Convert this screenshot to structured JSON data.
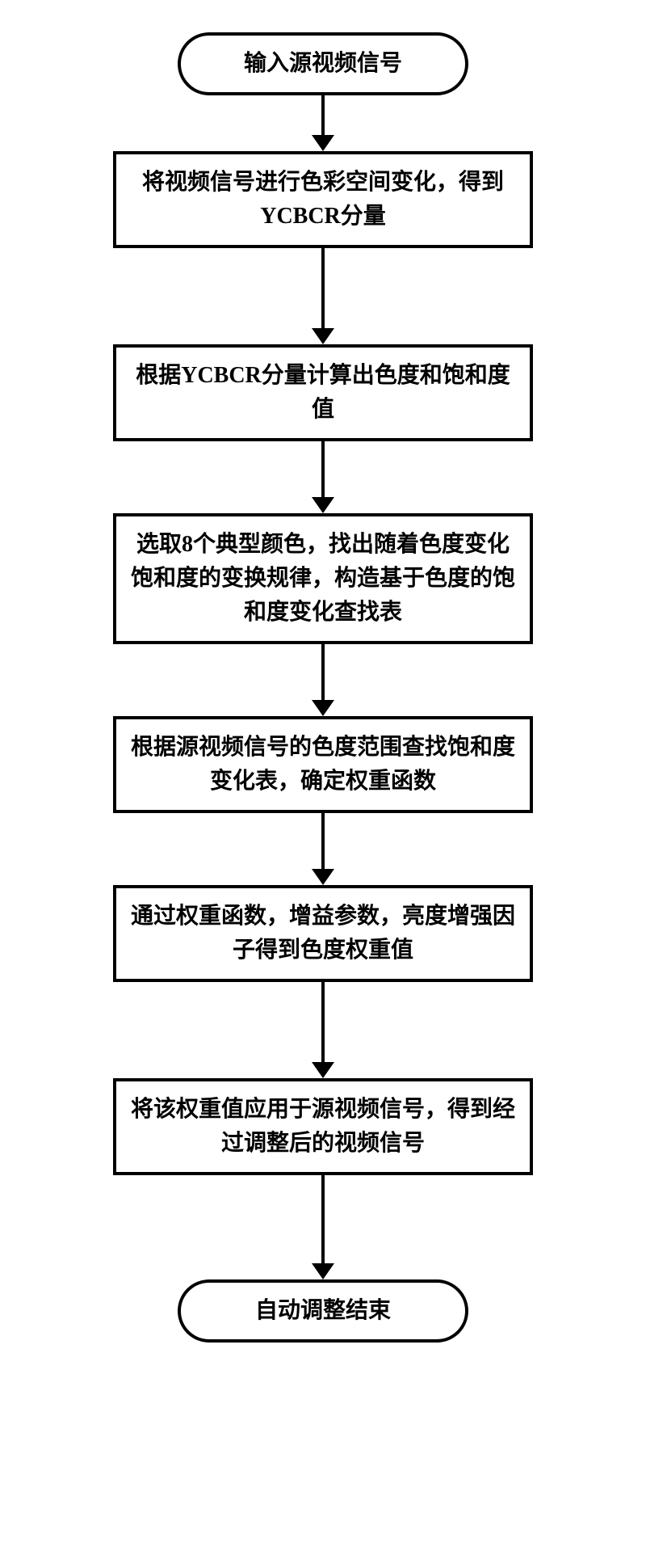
{
  "flowchart": {
    "type": "flowchart",
    "background_color": "#ffffff",
    "border_color": "#000000",
    "border_width": 4,
    "text_color": "#000000",
    "font_size": 28,
    "font_weight": "bold",
    "font_family": "SimSun",
    "arrow_color": "#000000",
    "arrow_line_width": 4,
    "arrow_head_width": 28,
    "arrow_head_height": 20,
    "terminator_width": 360,
    "terminator_border_radius": 50,
    "process_width": 520,
    "nodes": [
      {
        "id": "n1",
        "type": "terminator",
        "label": "输入源视频信号",
        "arrow_after_height": 50
      },
      {
        "id": "n2",
        "type": "process",
        "label": "将视频信号进行色彩空间变化，得到YCBCR分量",
        "arrow_after_height": 100
      },
      {
        "id": "n3",
        "type": "process",
        "label": "根据YCBCR分量计算出色度和饱和度值",
        "arrow_after_height": 70
      },
      {
        "id": "n4",
        "type": "process",
        "label": "选取8个典型颜色，找出随着色度变化饱和度的变换规律，构造基于色度的饱和度变化查找表",
        "arrow_after_height": 70
      },
      {
        "id": "n5",
        "type": "process",
        "label": "根据源视频信号的色度范围查找饱和度变化表，确定权重函数",
        "arrow_after_height": 70
      },
      {
        "id": "n6",
        "type": "process",
        "label": "通过权重函数，增益参数，亮度增强因子得到色度权重值",
        "arrow_after_height": 100
      },
      {
        "id": "n7",
        "type": "process",
        "label": "将该权重值应用于源视频信号，得到经过调整后的视频信号",
        "arrow_after_height": 110
      },
      {
        "id": "n8",
        "type": "terminator",
        "label": "自动调整结束",
        "arrow_after_height": 0
      }
    ]
  }
}
